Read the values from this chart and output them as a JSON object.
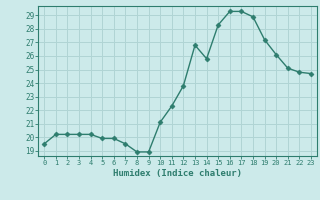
{
  "x": [
    0,
    1,
    2,
    3,
    4,
    5,
    6,
    7,
    8,
    9,
    10,
    11,
    12,
    13,
    14,
    15,
    16,
    17,
    18,
    19,
    20,
    21,
    22,
    23
  ],
  "y": [
    19.5,
    20.2,
    20.2,
    20.2,
    20.2,
    19.9,
    19.9,
    19.5,
    18.9,
    18.9,
    21.1,
    22.3,
    23.8,
    26.8,
    25.8,
    28.3,
    29.3,
    29.3,
    28.9,
    27.2,
    26.1,
    25.1,
    24.8,
    24.7
  ],
  "xlabel": "Humidex (Indice chaleur)",
  "line_color": "#2e7d6e",
  "bg_color": "#cceaea",
  "grid_color": "#b0d4d4",
  "ylim": [
    18.6,
    29.7
  ],
  "xlim": [
    -0.5,
    23.5
  ],
  "yticks": [
    19,
    20,
    21,
    22,
    23,
    24,
    25,
    26,
    27,
    28,
    29
  ],
  "xticks": [
    0,
    1,
    2,
    3,
    4,
    5,
    6,
    7,
    8,
    9,
    10,
    11,
    12,
    13,
    14,
    15,
    16,
    17,
    18,
    19,
    20,
    21,
    22,
    23
  ],
  "tick_color": "#2e7d6e",
  "label_color": "#2e7d6e"
}
